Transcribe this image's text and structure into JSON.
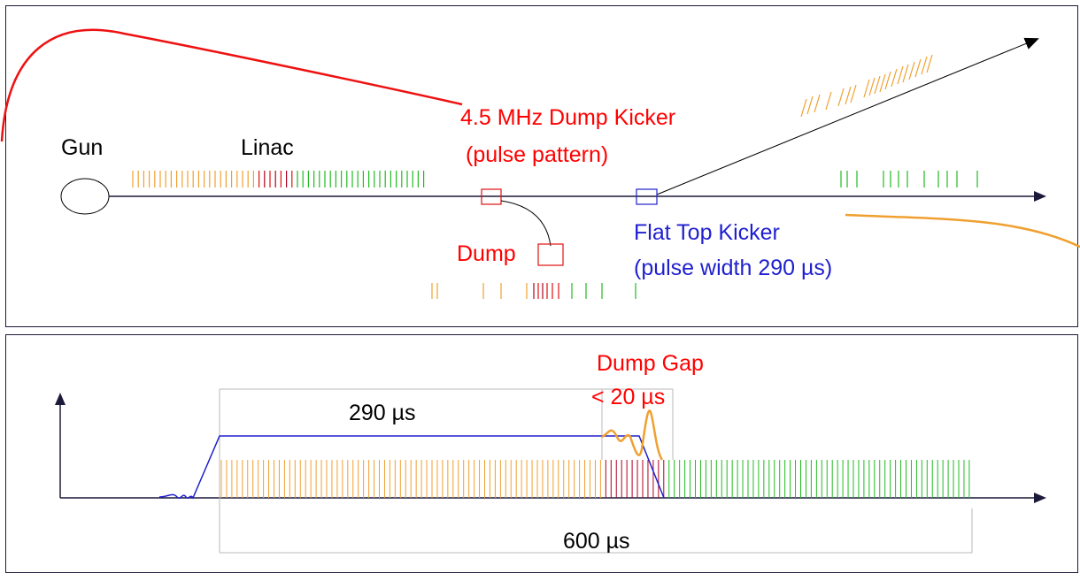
{
  "top_diagram": {
    "labels": {
      "gun": "Gun",
      "linac": "Linac",
      "dump_kicker_line1": "4.5 MHz Dump Kicker",
      "dump_kicker_line2": "(pulse pattern)",
      "dump": "Dump",
      "flat_top_line1": "Flat Top Kicker",
      "flat_top_line2": "(pulse width 290 µs)"
    }
  },
  "bottom_diagram": {
    "labels": {
      "dump_gap_line1": "Dump Gap",
      "dump_gap_line2": "< 20 µs",
      "pulse_width": "290 µs",
      "total_width": "600 µs"
    }
  },
  "colors": {
    "orange": "#f0a030",
    "red": "#e01010",
    "darkred": "#b00020",
    "green": "#22bb22",
    "blue": "#2020cc",
    "axis": "#1c1a3a"
  }
}
